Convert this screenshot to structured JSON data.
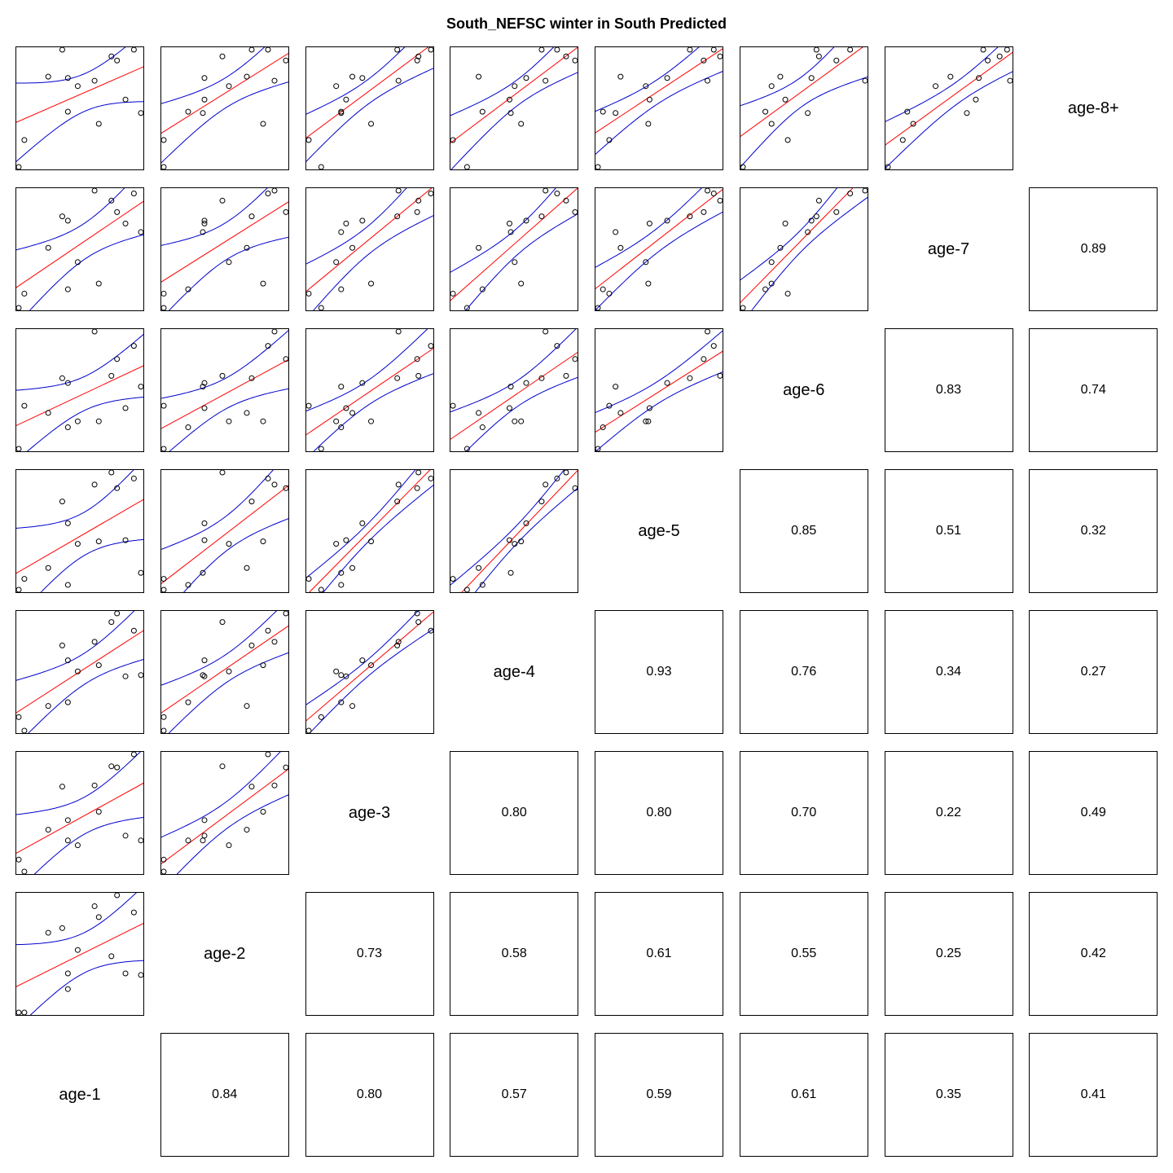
{
  "chart_data": {
    "type": "scatter",
    "title": "South_NEFSC winter in South Predicted",
    "variables": [
      "age-1",
      "age-2",
      "age-3",
      "age-4",
      "age-5",
      "age-6",
      "age-7",
      "age-8+"
    ],
    "lower_panels": "scatter with red regression line and blue confidence bands",
    "upper_panels": "correlation coefficients",
    "correlations": [
      {
        "row": "age-1",
        "col": "age-2",
        "value": "0.84"
      },
      {
        "row": "age-1",
        "col": "age-3",
        "value": "0.80"
      },
      {
        "row": "age-1",
        "col": "age-4",
        "value": "0.57"
      },
      {
        "row": "age-1",
        "col": "age-5",
        "value": "0.59"
      },
      {
        "row": "age-1",
        "col": "age-6",
        "value": "0.61"
      },
      {
        "row": "age-1",
        "col": "age-7",
        "value": "0.35"
      },
      {
        "row": "age-1",
        "col": "age-8+",
        "value": "0.41"
      },
      {
        "row": "age-2",
        "col": "age-3",
        "value": "0.73"
      },
      {
        "row": "age-2",
        "col": "age-4",
        "value": "0.58"
      },
      {
        "row": "age-2",
        "col": "age-5",
        "value": "0.61"
      },
      {
        "row": "age-2",
        "col": "age-6",
        "value": "0.55"
      },
      {
        "row": "age-2",
        "col": "age-7",
        "value": "0.25"
      },
      {
        "row": "age-2",
        "col": "age-8+",
        "value": "0.42"
      },
      {
        "row": "age-3",
        "col": "age-4",
        "value": "0.80"
      },
      {
        "row": "age-3",
        "col": "age-5",
        "value": "0.80"
      },
      {
        "row": "age-3",
        "col": "age-6",
        "value": "0.70"
      },
      {
        "row": "age-3",
        "col": "age-7",
        "value": "0.22"
      },
      {
        "row": "age-3",
        "col": "age-8+",
        "value": "0.49"
      },
      {
        "row": "age-4",
        "col": "age-5",
        "value": "0.93"
      },
      {
        "row": "age-4",
        "col": "age-6",
        "value": "0.76"
      },
      {
        "row": "age-4",
        "col": "age-7",
        "value": "0.34"
      },
      {
        "row": "age-4",
        "col": "age-8+",
        "value": "0.27"
      },
      {
        "row": "age-5",
        "col": "age-6",
        "value": "0.85"
      },
      {
        "row": "age-5",
        "col": "age-7",
        "value": "0.51"
      },
      {
        "row": "age-5",
        "col": "age-8+",
        "value": "0.32"
      },
      {
        "row": "age-6",
        "col": "age-7",
        "value": "0.83"
      },
      {
        "row": "age-6",
        "col": "age-8+",
        "value": "0.74"
      },
      {
        "row": "age-7",
        "col": "age-8+",
        "value": "0.89"
      }
    ],
    "colors": {
      "points": "#000000",
      "fit_line": "#ff0000",
      "confidence_band": "#0000cc",
      "frame": "#000000"
    },
    "scatter_values": {
      "age-1": [
        0.03,
        0.85,
        0.45,
        0.6,
        0.07,
        0.57,
        0.24,
        0.38,
        0.38,
        0.9,
        0.69,
        0.79,
        0.73,
        0.34
      ],
      "age-2": [
        0.07,
        0.71,
        0.47,
        0.68,
        0.07,
        0.75,
        0.58,
        0.22,
        0.32,
        0.31,
        0.43,
        0.32,
        0.82,
        0.61
      ],
      "age-3": [
        0.11,
        0.99,
        0.23,
        0.51,
        0.01,
        0.73,
        0.36,
        0.27,
        0.44,
        0.27,
        0.89,
        0.31,
        0.88,
        0.72
      ],
      "age-4": [
        0.12,
        0.82,
        0.49,
        0.54,
        0.01,
        0.73,
        0.21,
        0.24,
        0.58,
        0.46,
        0.89,
        0.45,
        0.96,
        0.7
      ],
      "age-5": [
        0.03,
        0.95,
        0.41,
        0.43,
        0.12,
        0.9,
        0.21,
        0.07,
        0.58,
        0.17,
        1.0,
        0.44,
        0.87,
        0.76
      ],
      "age-6": [
        0.0,
        0.86,
        0.23,
        0.23,
        0.36,
        0.98,
        0.3,
        0.18,
        0.55,
        0.52,
        0.61,
        0.34,
        0.75,
        0.59
      ],
      "age-7": [
        0.07,
        0.87,
        0.39,
        0.24,
        0.17,
        0.89,
        0.49,
        0.2,
        0.68,
        0.6,
        0.82,
        0.66,
        0.74,
        0.71
      ],
      "age-8+": [
        0.04,
        0.91,
        0.64,
        0.36,
        0.24,
        0.68,
        0.71,
        0.45,
        0.7,
        0.44,
        0.86,
        0.54,
        0.83,
        0.91
      ]
    }
  }
}
